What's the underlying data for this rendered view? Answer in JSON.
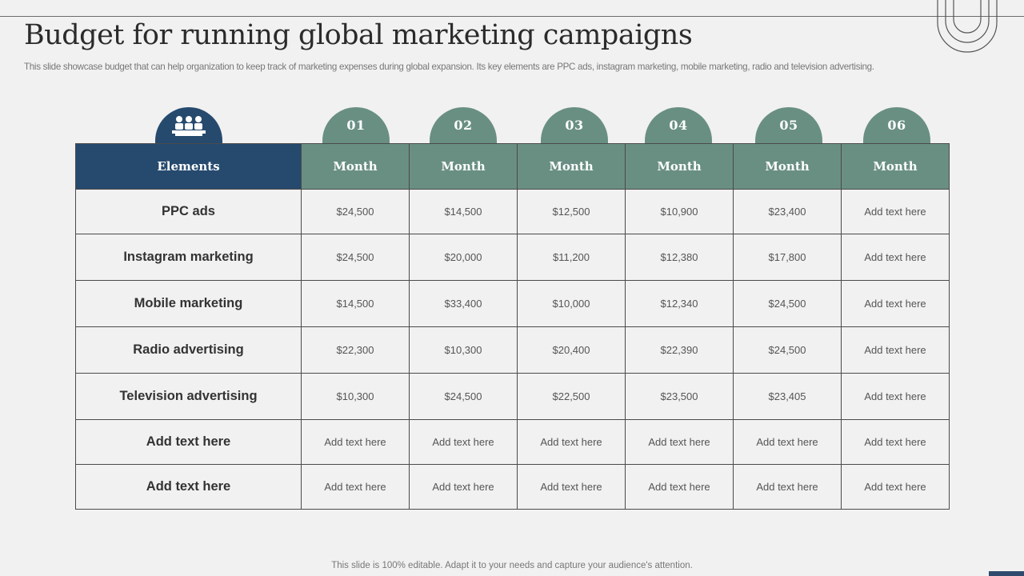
{
  "slide": {
    "title": "Budget for running global marketing campaigns",
    "subtitle": "This slide showcase budget that can help organization to keep track of marketing expenses during global expansion. Its key elements are PPC ads, instagram marketing, mobile marketing, radio and television advertising.",
    "footer": "This slide is 100% editable. Adapt it to your needs and capture your audience's attention."
  },
  "colors": {
    "primary_dark": "#264a6e",
    "accent_teal": "#698f83",
    "background": "#f1f1f1"
  },
  "header_icon": "people-group-icon",
  "table": {
    "tab_numbers": [
      "01",
      "02",
      "03",
      "04",
      "05",
      "06"
    ],
    "header": [
      "Elements",
      "Month",
      "Month",
      "Month",
      "Month",
      "Month",
      "Month"
    ],
    "rows": [
      {
        "label": "PPC ads",
        "values": [
          "$24,500",
          "$14,500",
          "$12,500",
          "$10,900",
          "$23,400",
          "Add text here"
        ]
      },
      {
        "label": "Instagram marketing",
        "values": [
          "$24,500",
          "$20,000",
          "$11,200",
          "$12,380",
          "$17,800",
          "Add text here"
        ]
      },
      {
        "label": "Mobile marketing",
        "values": [
          "$14,500",
          "$33,400",
          "$10,000",
          "$12,340",
          "$24,500",
          "Add text here"
        ]
      },
      {
        "label": "Radio advertising",
        "values": [
          "$22,300",
          "$10,300",
          "$20,400",
          "$22,390",
          "$24,500",
          "Add text here"
        ]
      },
      {
        "label": "Television advertising",
        "values": [
          "$10,300",
          "$24,500",
          "$22,500",
          "$23,500",
          "$23,405",
          "Add text here"
        ]
      },
      {
        "label": "Add text here",
        "values": [
          "Add text here",
          "Add text here",
          "Add text here",
          "Add text here",
          "Add text here",
          "Add text here"
        ]
      },
      {
        "label": "Add text here",
        "values": [
          "Add text here",
          "Add text here",
          "Add text here",
          "Add text here",
          "Add text here",
          "Add text here"
        ]
      }
    ]
  }
}
